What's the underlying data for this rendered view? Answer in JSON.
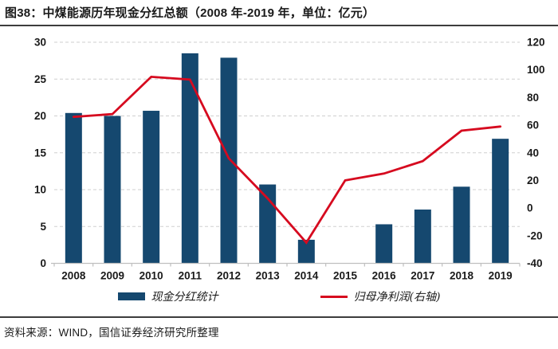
{
  "header": {
    "title": "图38：中煤能源历年现金分红总额（2008 年-2019 年，单位：亿元）"
  },
  "footer": {
    "source": "资料来源：WIND，国信证券经济研究所整理"
  },
  "colors": {
    "bar": "#15486F",
    "line": "#D60A1F",
    "grid": "#CFCFCF",
    "axis": "#BFBFBF",
    "text": "#1A1A1A"
  },
  "chart_data": {
    "type": "bar",
    "title": "中煤能源历年现金分红总额",
    "unit": "亿元",
    "categories": [
      "2008",
      "2009",
      "2010",
      "2011",
      "2012",
      "2013",
      "2014",
      "2015",
      "2016",
      "2017",
      "2018",
      "2019"
    ],
    "series": [
      {
        "name": "现金分红统计",
        "type": "bar",
        "axis": "left",
        "color": "#15486F",
        "values": [
          20.4,
          20.0,
          20.7,
          28.5,
          27.9,
          10.7,
          3.2,
          0,
          5.3,
          7.3,
          10.4,
          16.9
        ]
      },
      {
        "name": "归母净利润(右轴)",
        "type": "line",
        "axis": "right",
        "color": "#D60A1F",
        "values": [
          66,
          68,
          95,
          93,
          36,
          7,
          -25,
          20,
          25,
          34,
          56,
          59
        ]
      }
    ],
    "left_axis": {
      "min": 0,
      "max": 30,
      "step": 5,
      "ticks": [
        0,
        5,
        10,
        15,
        20,
        25,
        30
      ]
    },
    "right_axis": {
      "min": -40,
      "max": 120,
      "step": 20,
      "ticks": [
        -40,
        -20,
        0,
        20,
        40,
        60,
        80,
        100,
        120
      ]
    },
    "grid": "horizontal-dashed",
    "legend_position": "bottom"
  }
}
